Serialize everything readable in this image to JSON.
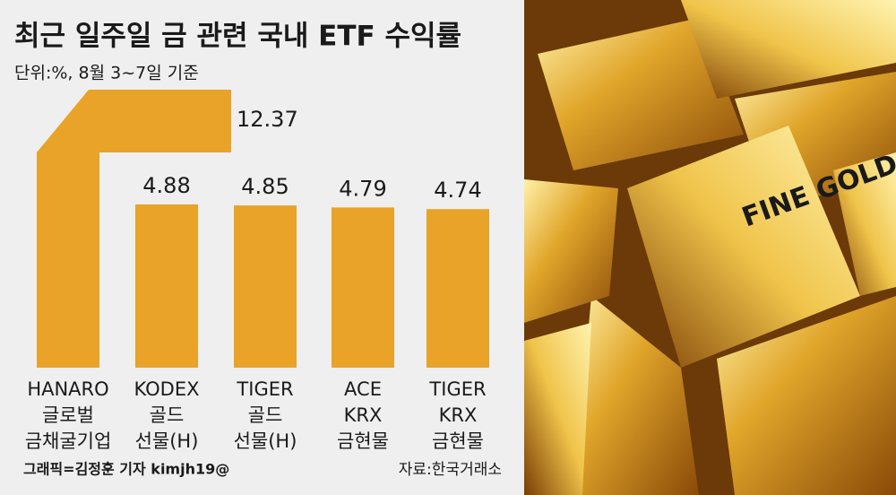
{
  "chart_data": {
    "type": "bar",
    "title": "최근 일주일 금 관련 국내 ETF 수익률",
    "subtitle": "단위:%, 8월 3~7일 기준",
    "categories": [
      [
        "HANARO",
        "글로벌",
        "금채굴기업"
      ],
      [
        "KODEX",
        "골드",
        "선물(H)"
      ],
      [
        "TIGER",
        "골드",
        "선물(H)"
      ],
      [
        "ACE",
        "KRX",
        "금현물"
      ],
      [
        "TIGER",
        "KRX",
        "금현물"
      ]
    ],
    "values": [
      12.37,
      4.88,
      4.85,
      4.79,
      4.74
    ],
    "value_labels": [
      "12.37",
      "4.88",
      "4.85",
      "4.79",
      "4.74"
    ],
    "color": "#e8a328",
    "credit": "그래픽=김정훈 기자 kimjh19@",
    "source": "자료:한국거래소"
  }
}
